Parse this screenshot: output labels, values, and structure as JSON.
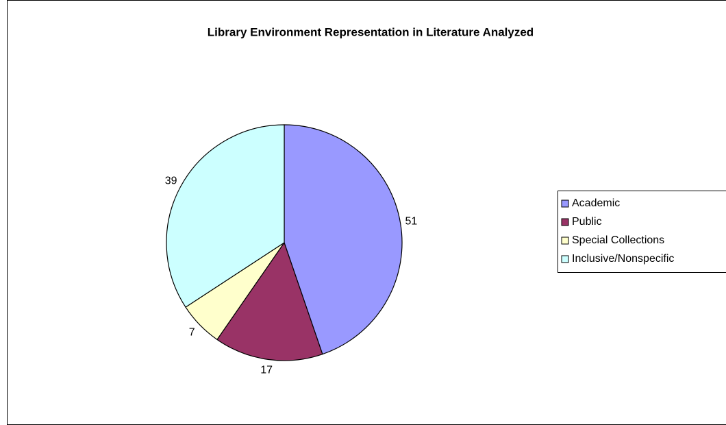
{
  "chart_data": {
    "type": "pie",
    "title": "Library Environment Representation in Literature Analyzed",
    "categories": [
      "Academic",
      "Public",
      "Special Collections",
      "Inclusive/Nonspecific"
    ],
    "values": [
      51,
      17,
      7,
      39
    ],
    "colors": [
      "#9999ff",
      "#993366",
      "#ffffcc",
      "#ccffff"
    ],
    "legend": "right"
  }
}
